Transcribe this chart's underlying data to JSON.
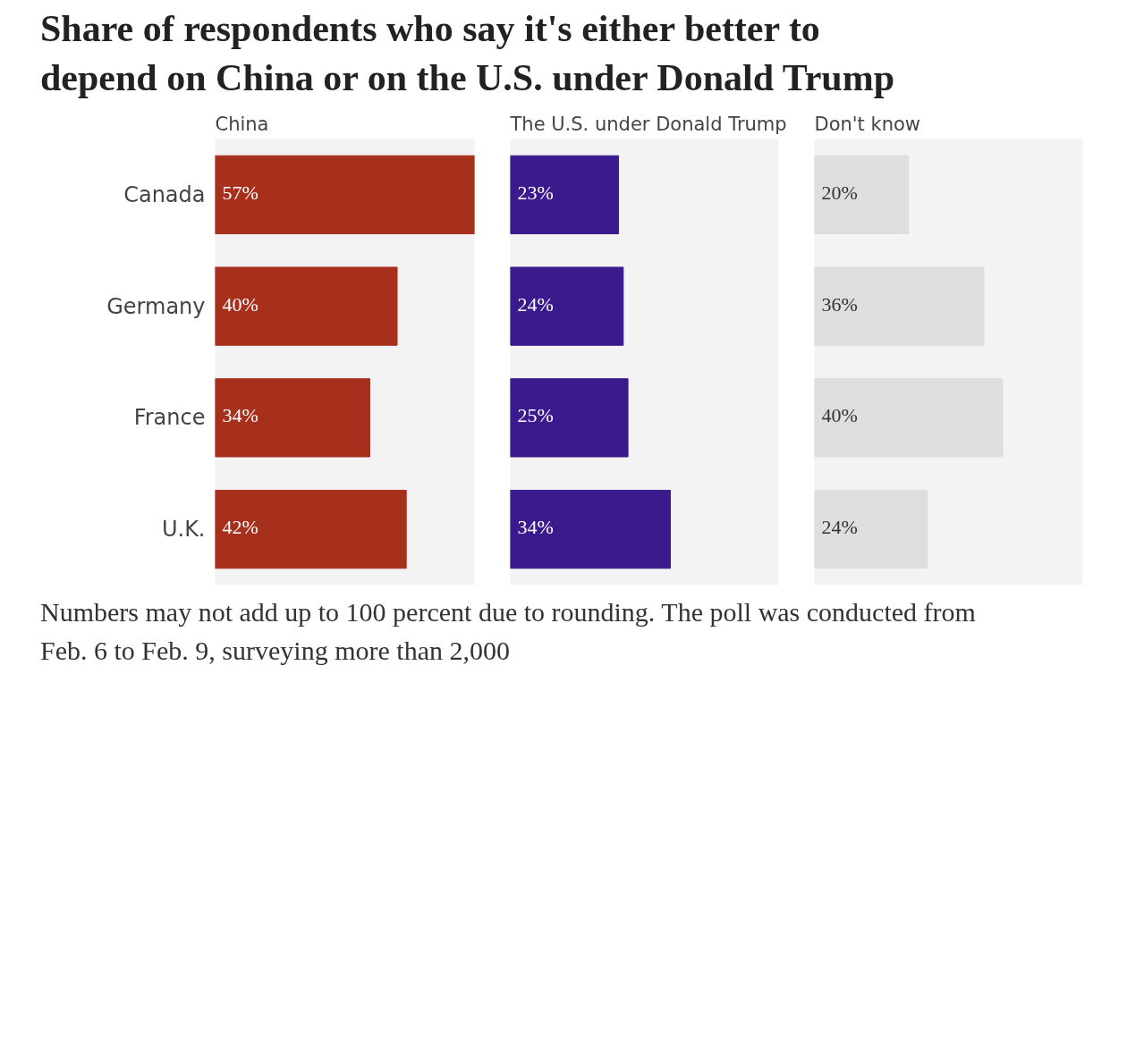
{
  "chart_data": [
    {
      "type": "bar",
      "orientation": "horizontal",
      "title": "Share of respondents who say it's either better to depend on China or on the U.S. under Donald Trump",
      "subtitle": "China",
      "categories": [
        "Canada",
        "Germany",
        "France",
        "U.K."
      ],
      "values": [
        57,
        40,
        34,
        42
      ],
      "color": "#a6301c",
      "value_labels": [
        "57%",
        "40%",
        "34%",
        "42%"
      ],
      "tick_labels": "y",
      "annotations": [
        "Numbers may not add up to 100 percent due to rounding. The poll was conducted from Feb. 6 to Feb. 9, surveying more than 2,000"
      ]
    },
    {
      "type": "bar",
      "orientation": "horizontal",
      "subtitle": "The U.S. under Donald Trump",
      "values": [
        23,
        24,
        25,
        34
      ],
      "color": "#3a1a8c",
      "value_labels": [
        "23%",
        "24%",
        "25%",
        "34%"
      ],
      "tick_labels": false
    },
    {
      "type": "bar",
      "orientation": "horizontal",
      "subtitle": "Don't know",
      "values": [
        20,
        36,
        40,
        24
      ],
      "color": "#dedede",
      "value_labels": [
        "20%",
        "36%",
        "40%",
        "24%"
      ],
      "tick_labels": false
    }
  ]
}
